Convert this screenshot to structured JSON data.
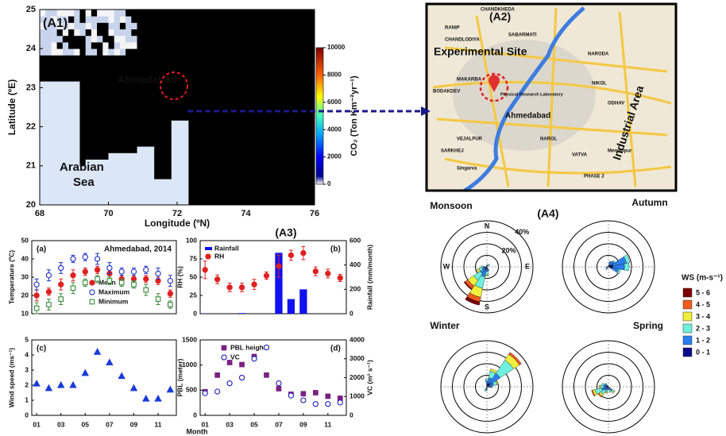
{
  "chart_data": [
    {
      "type": "heatmap",
      "panel": "(A1)",
      "xlabel": "Longitude (ºN)",
      "ylabel": "Latitude (ºE)",
      "xlim": [
        68,
        76
      ],
      "xticks": [
        68,
        70,
        72,
        74,
        76
      ],
      "ylim": [
        20,
        25
      ],
      "yticks": [
        20,
        21,
        22,
        23,
        24,
        25
      ],
      "annotations": [
        "Ahmedabad",
        "Arabian",
        "Sea"
      ],
      "colorbar": {
        "label": "CO₂ (Ton Km⁻²yr⁻¹)",
        "lim": [
          0,
          10000
        ],
        "ticks": [
          0,
          2000,
          4000,
          6000,
          8000,
          10000
        ]
      }
    },
    {
      "type": "errorbar",
      "panel": "(a)",
      "title": "Ahmedabad, 2014",
      "ylabel": "Temperature (ºC)",
      "x": [
        1,
        2,
        3,
        4,
        5,
        6,
        7,
        8,
        9,
        10,
        11,
        12
      ],
      "xlim": [
        0.6,
        12.5
      ],
      "ylim": [
        10,
        50
      ],
      "yticks": [
        10,
        20,
        30,
        40,
        50
      ],
      "series": [
        {
          "name": "Mean",
          "color": "#e02020",
          "marker": "circle",
          "filled": true,
          "values": [
            20,
            22,
            26,
            31,
            33,
            34,
            32,
            29,
            29,
            29,
            28,
            21
          ],
          "errors": [
            3,
            2,
            3,
            3,
            2,
            2,
            2,
            2,
            2,
            2,
            2,
            2
          ]
        },
        {
          "name": "Maximum",
          "color": "#2030c0",
          "marker": "circle",
          "filled": false,
          "values": [
            26,
            31,
            35,
            40,
            41,
            40,
            35,
            33,
            33,
            34,
            32,
            28
          ],
          "errors": [
            3,
            3,
            3,
            2,
            2,
            3,
            3,
            2,
            2,
            2,
            3,
            3
          ]
        },
        {
          "name": "Minimum",
          "color": "#3a8a3a",
          "marker": "square",
          "filled": false,
          "values": [
            13,
            15,
            18,
            24,
            27,
            29,
            28,
            27,
            26,
            23,
            18,
            15
          ],
          "errors": [
            3,
            3,
            3,
            3,
            2,
            2,
            2,
            2,
            2,
            3,
            3,
            2
          ]
        }
      ]
    },
    {
      "type": "combo",
      "panel": "(b)",
      "ylabel": "RH (%)",
      "y2label": "Rainfall (mm/month)",
      "x": [
        1,
        2,
        3,
        4,
        5,
        6,
        7,
        8,
        9,
        10,
        11,
        12
      ],
      "xlim": [
        0.6,
        12.5
      ],
      "ylim": [
        0,
        100
      ],
      "yticks": [
        0,
        25,
        50,
        75,
        100
      ],
      "y2lim": [
        0,
        600
      ],
      "y2ticks": [
        0,
        200,
        400,
        600
      ],
      "series": [
        {
          "name": "Rainfall",
          "color": "#1010f0",
          "kind": "bar",
          "axis": "y2",
          "values": [
            2,
            0,
            0,
            5,
            0,
            0,
            500,
            120,
            200,
            0,
            0,
            0
          ]
        },
        {
          "name": "RH",
          "color": "#e02020",
          "kind": "errorbar",
          "marker": "circle",
          "filled": true,
          "values": [
            60,
            47,
            36,
            36,
            40,
            52,
            65,
            80,
            83,
            58,
            55,
            49
          ],
          "errors": [
            12,
            6,
            6,
            6,
            7,
            5,
            15,
            7,
            9,
            6,
            6,
            5
          ]
        }
      ]
    },
    {
      "type": "scatter",
      "panel": "(c)",
      "ylabel": "Wind speed (ms⁻¹)",
      "xlabel": "Month",
      "x": [
        1,
        2,
        3,
        4,
        5,
        6,
        7,
        8,
        9,
        10,
        11,
        12
      ],
      "xlim": [
        0.6,
        12.5
      ],
      "xticks": [
        {
          "value": 1,
          "label": "01"
        },
        {
          "value": 3,
          "label": "03"
        },
        {
          "value": 5,
          "label": "05"
        },
        {
          "value": 7,
          "label": "07"
        },
        {
          "value": 9,
          "label": "09"
        },
        {
          "value": 11,
          "label": "11"
        }
      ],
      "ylim": [
        0,
        5
      ],
      "yticks": [
        0,
        1,
        2,
        3,
        4,
        5
      ],
      "color": "#1a3ad8",
      "marker": "triangle",
      "filled": true,
      "values": [
        2.1,
        1.8,
        2.0,
        2.0,
        2.8,
        4.2,
        3.5,
        2.6,
        1.8,
        1.1,
        1.1,
        1.7
      ]
    },
    {
      "type": "combo",
      "panel": "(d)",
      "ylabel": "PBL (meter)",
      "y2label": "VC (m² s⁻¹)",
      "x": [
        1,
        2,
        3,
        4,
        5,
        6,
        7,
        8,
        9,
        10,
        11,
        12
      ],
      "xlim": [
        0.6,
        12.5
      ],
      "xticks": [
        {
          "value": 1,
          "label": "01"
        },
        {
          "value": 3,
          "label": "03"
        },
        {
          "value": 5,
          "label": "05"
        },
        {
          "value": 7,
          "label": "07"
        },
        {
          "value": 9,
          "label": "09"
        },
        {
          "value": 11,
          "label": "11"
        }
      ],
      "ylim": [
        0,
        1500
      ],
      "yticks": [
        0,
        500,
        1000,
        1500
      ],
      "y2lim": [
        0,
        4000
      ],
      "y2ticks": [
        0,
        1000,
        2000,
        3000,
        4000
      ],
      "series": [
        {
          "name": "PBL height",
          "color": "#7a2080",
          "kind": "scatter",
          "marker": "square",
          "filled": true,
          "values": [
            470,
            800,
            1050,
            1010,
            1170,
            800,
            530,
            420,
            430,
            450,
            380,
            340
          ]
        },
        {
          "name": "VC",
          "color": "#2020c0",
          "kind": "scatter",
          "axis": "y2",
          "marker": "circle",
          "filled": false,
          "values": [
            1170,
            1260,
            1700,
            2000,
            3000,
            3600,
            1700,
            1050,
            800,
            600,
            600,
            680
          ]
        }
      ]
    },
    {
      "type": "windrose",
      "title": "Monsoon",
      "rlim": [
        0,
        40
      ],
      "rings": [
        10,
        20,
        30,
        40
      ],
      "ring_labels": [
        {
          "value": 20,
          "label": "20%"
        },
        {
          "value": 40,
          "label": "40%"
        }
      ],
      "compass": [
        "N",
        "E",
        "S",
        "W"
      ],
      "sectors": [
        {
          "direction": 202.5,
          "values": [
            3,
            4,
            8,
            10,
            6,
            3
          ]
        },
        {
          "direction": 225,
          "values": [
            1,
            3,
            6,
            7,
            5,
            2
          ]
        },
        {
          "direction": 247.5,
          "values": [
            0,
            0,
            2,
            3,
            3,
            1
          ]
        },
        {
          "direction": 180,
          "values": [
            0,
            0,
            1,
            3,
            3,
            1
          ]
        },
        {
          "direction": 270,
          "values": [
            0,
            0,
            0,
            2,
            2,
            1
          ]
        },
        {
          "direction": 157.5,
          "values": [
            0,
            0,
            0,
            1,
            2,
            1
          ]
        },
        {
          "direction": 45,
          "values": [
            0,
            0,
            0,
            1,
            1,
            1
          ]
        },
        {
          "direction": 0,
          "values": [
            0,
            0,
            0,
            0,
            1,
            1
          ]
        }
      ]
    },
    {
      "type": "windrose",
      "title": "Autumn",
      "rlim": [
        0,
        40
      ],
      "rings": [
        10,
        20,
        30,
        40
      ],
      "sectors": [
        {
          "direction": 67.5,
          "values": [
            0,
            0,
            0,
            3,
            12,
            4
          ]
        },
        {
          "direction": 90,
          "values": [
            0,
            0,
            0,
            4,
            10,
            4
          ]
        },
        {
          "direction": 112.5,
          "values": [
            0,
            0,
            0,
            2,
            6,
            3
          ]
        },
        {
          "direction": 45,
          "values": [
            0,
            0,
            0,
            1,
            4,
            2
          ]
        },
        {
          "direction": 22.5,
          "values": [
            0,
            0,
            0,
            0,
            3,
            2
          ]
        },
        {
          "direction": 225,
          "values": [
            0,
            0,
            0,
            0,
            2,
            1
          ]
        },
        {
          "direction": 270,
          "values": [
            0,
            0,
            0,
            0,
            1,
            1
          ]
        }
      ]
    },
    {
      "type": "windrose",
      "title": "Winter",
      "rlim": [
        0,
        40
      ],
      "rings": [
        10,
        20,
        30,
        40
      ],
      "sectors": [
        {
          "direction": 45,
          "values": [
            0,
            2,
            6,
            14,
            10,
            4
          ]
        },
        {
          "direction": 22.5,
          "values": [
            0,
            0,
            2,
            6,
            5,
            3
          ]
        },
        {
          "direction": 67.5,
          "values": [
            0,
            0,
            1,
            3,
            4,
            2
          ]
        },
        {
          "direction": 0,
          "values": [
            0,
            0,
            0,
            2,
            3,
            2
          ]
        },
        {
          "direction": 90,
          "values": [
            0,
            0,
            0,
            1,
            2,
            2
          ]
        },
        {
          "direction": 202.5,
          "values": [
            0,
            0,
            0,
            1,
            2,
            1
          ]
        },
        {
          "direction": 180,
          "values": [
            0,
            0,
            0,
            1,
            1,
            1
          ]
        }
      ]
    },
    {
      "type": "windrose",
      "title": "Spring",
      "rlim": [
        0,
        40
      ],
      "rings": [
        10,
        20,
        30,
        40
      ],
      "sectors": [
        {
          "direction": 247.5,
          "values": [
            0,
            1,
            2,
            6,
            4,
            2
          ]
        },
        {
          "direction": 225,
          "values": [
            0,
            1,
            2,
            4,
            3,
            1
          ]
        },
        {
          "direction": 270,
          "values": [
            0,
            0,
            1,
            3,
            3,
            1
          ]
        },
        {
          "direction": 292.5,
          "values": [
            0,
            0,
            0,
            2,
            3,
            1
          ]
        },
        {
          "direction": 135,
          "values": [
            0,
            0,
            1,
            2,
            3,
            1
          ]
        },
        {
          "direction": 157.5,
          "values": [
            0,
            0,
            0,
            2,
            2,
            1
          ]
        },
        {
          "direction": 315,
          "values": [
            0,
            0,
            0,
            1,
            2,
            1
          ]
        },
        {
          "direction": 202.5,
          "values": [
            0,
            0,
            1,
            2,
            2,
            1
          ]
        }
      ]
    }
  ],
  "windrose_legend": {
    "title": "WS (m-s⁻¹)",
    "bins": [
      "5 - 6",
      "4 - 5",
      "3 - 4",
      "2 - 3",
      "1 - 2",
      "0 - 1"
    ],
    "colors": [
      "#7a0000",
      "#f05a1e",
      "#f0f03c",
      "#6ef0dc",
      "#2a7ff0",
      "#0a0a8c"
    ]
  },
  "panel_labels": {
    "a3": "(A3)",
    "a4": "(A4)"
  },
  "map_a2": {
    "panel": "(A2)",
    "site": "Experimental Site",
    "industrial": "Industrial Area",
    "city": "Ahmedabad",
    "lab": "Physical Research Laboratory",
    "places": [
      "CHANDKHEDA",
      "RANIP",
      "SABARMATI",
      "CHANDLODIYA",
      "NARODA",
      "NIKOL",
      "MAKARBA",
      "BODAKDEV",
      "ODHAV",
      "VEJALPUR",
      "SARKHEJ",
      "VATVA",
      "NAROL",
      "Singarva",
      "Memadpur",
      "PHASE 2"
    ]
  }
}
